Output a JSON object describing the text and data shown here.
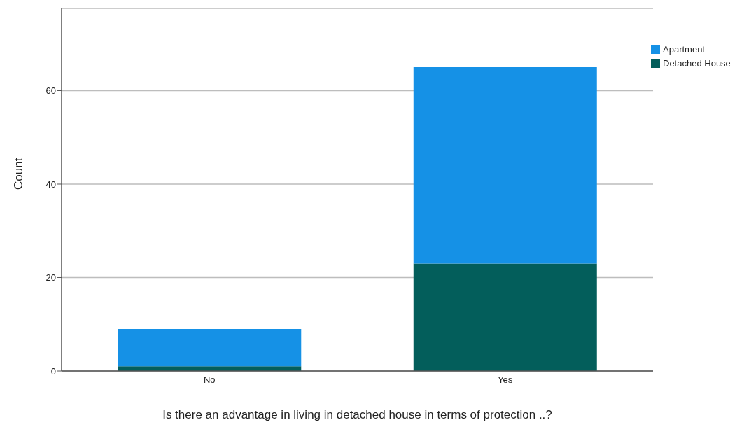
{
  "chart_data": {
    "type": "bar",
    "stacked": true,
    "xlabel": "Is there an advantage in living in detached house in terms of protection ..?",
    "ylabel": "Count",
    "categories": [
      "No",
      "Yes"
    ],
    "series": [
      {
        "name": "Detached House",
        "color": "#035e5b",
        "values": [
          1,
          23
        ]
      },
      {
        "name": "Apartment",
        "color": "#1591e6",
        "values": [
          8,
          42
        ]
      }
    ],
    "ylim": [
      0,
      77.6
    ],
    "yticks": [
      0,
      20,
      40,
      60
    ],
    "grid": "y",
    "legend": "top right"
  }
}
